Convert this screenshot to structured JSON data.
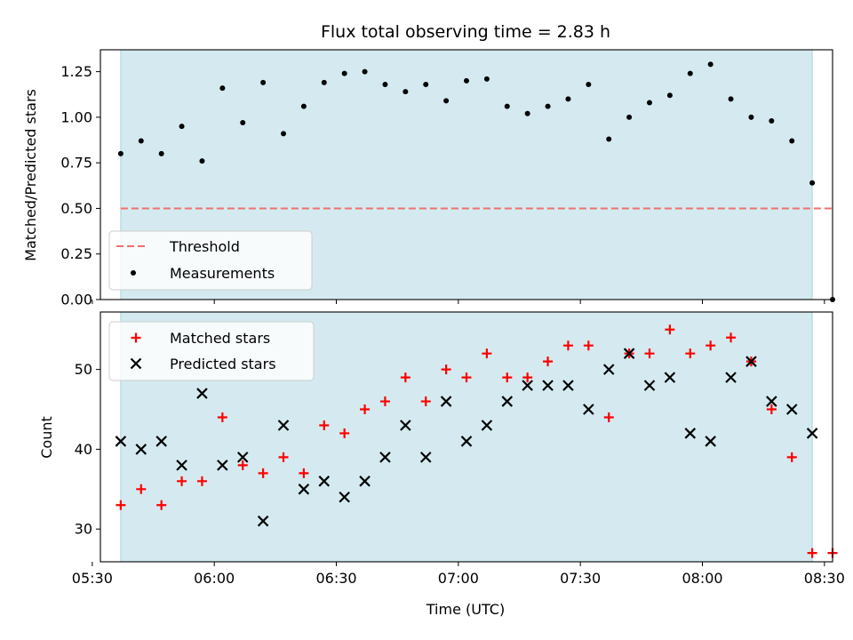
{
  "chart_data": [
    {
      "type": "scatter",
      "title": "Flux total observing time = 2.83 h",
      "xlabel": "",
      "ylabel": "Matched/Predicted stars",
      "ylim": [
        0.0,
        1.37
      ],
      "xlim": [
        "05:32",
        "08:32"
      ],
      "yticks": [
        "0.00",
        "0.25",
        "0.50",
        "0.75",
        "1.00",
        "1.25"
      ],
      "ytick_values": [
        0.0,
        0.25,
        0.5,
        0.75,
        1.0,
        1.25
      ],
      "shaded_span": [
        "05:37",
        "08:27"
      ],
      "threshold": {
        "name": "Threshold",
        "value": 0.5,
        "x_start": "05:37",
        "x_end": "08:32",
        "color": "#f07070"
      },
      "series": [
        {
          "name": "Measurements",
          "color": "#000000",
          "x": [
            "05:37",
            "05:42",
            "05:47",
            "05:52",
            "05:57",
            "06:02",
            "06:07",
            "06:12",
            "06:17",
            "06:22",
            "06:27",
            "06:32",
            "06:37",
            "06:42",
            "06:47",
            "06:52",
            "06:57",
            "07:02",
            "07:07",
            "07:12",
            "07:17",
            "07:22",
            "07:27",
            "07:32",
            "07:37",
            "07:42",
            "07:47",
            "07:52",
            "07:57",
            "08:02",
            "08:07",
            "08:12",
            "08:17",
            "08:22",
            "08:27",
            "08:32"
          ],
          "y": [
            0.8,
            0.87,
            0.8,
            0.95,
            0.76,
            1.16,
            0.97,
            1.19,
            0.91,
            1.06,
            1.19,
            1.24,
            1.25,
            1.18,
            1.14,
            1.18,
            1.09,
            1.2,
            1.21,
            1.06,
            1.02,
            1.06,
            1.1,
            1.18,
            0.88,
            1.0,
            1.08,
            1.12,
            1.24,
            1.29,
            1.1,
            1.0,
            0.98,
            0.87,
            0.64,
            0.0
          ]
        }
      ],
      "legend": {
        "placement": "lower-left",
        "entries": [
          "Threshold",
          "Measurements"
        ]
      }
    },
    {
      "type": "scatter",
      "title": "",
      "xlabel": "Time (UTC)",
      "ylabel": "Count",
      "ylim": [
        25.9,
        57.2
      ],
      "xlim": [
        "05:32",
        "08:32"
      ],
      "xticks": [
        "05:30",
        "06:00",
        "06:30",
        "07:00",
        "07:30",
        "08:00",
        "08:30"
      ],
      "yticks": [
        "30",
        "40",
        "50"
      ],
      "ytick_values": [
        30,
        40,
        50
      ],
      "shaded_span": [
        "05:37",
        "08:27"
      ],
      "series": [
        {
          "name": "Matched stars",
          "color": "#ff0000",
          "marker": "plus",
          "x": [
            "05:37",
            "05:42",
            "05:47",
            "05:52",
            "05:57",
            "06:02",
            "06:07",
            "06:12",
            "06:17",
            "06:22",
            "06:27",
            "06:32",
            "06:37",
            "06:42",
            "06:47",
            "06:52",
            "06:57",
            "07:02",
            "07:07",
            "07:12",
            "07:17",
            "07:22",
            "07:27",
            "07:32",
            "07:37",
            "07:42",
            "07:47",
            "07:52",
            "07:57",
            "08:02",
            "08:07",
            "08:12",
            "08:17",
            "08:22",
            "08:27",
            "08:32"
          ],
          "y": [
            33,
            35,
            33,
            36,
            36,
            44,
            38,
            37,
            39,
            37,
            43,
            42,
            45,
            46,
            49,
            46,
            50,
            49,
            52,
            49,
            49,
            51,
            53,
            53,
            44,
            52,
            52,
            55,
            52,
            53,
            54,
            51,
            45,
            39,
            27,
            27
          ]
        },
        {
          "name": "Predicted stars",
          "color": "#000000",
          "marker": "x",
          "x": [
            "05:37",
            "05:42",
            "05:47",
            "05:52",
            "05:57",
            "06:02",
            "06:07",
            "06:12",
            "06:17",
            "06:22",
            "06:27",
            "06:32",
            "06:37",
            "06:42",
            "06:47",
            "06:52",
            "06:57",
            "07:02",
            "07:07",
            "07:12",
            "07:17",
            "07:22",
            "07:27",
            "07:32",
            "07:37",
            "07:42",
            "07:47",
            "07:52",
            "07:57",
            "08:02",
            "08:07",
            "08:12",
            "08:17",
            "08:22",
            "08:27"
          ],
          "y": [
            41,
            40,
            41,
            38,
            47,
            38,
            39,
            31,
            43,
            35,
            36,
            34,
            36,
            39,
            43,
            39,
            46,
            41,
            43,
            46,
            48,
            48,
            48,
            45,
            50,
            52,
            48,
            49,
            42,
            41,
            49,
            51,
            46,
            45,
            42
          ]
        }
      ],
      "legend": {
        "placement": "upper-left",
        "entries": [
          "Matched stars",
          "Predicted stars"
        ]
      }
    }
  ],
  "colors": {
    "shade": "#d4eaf0",
    "shade_edge": "#a8d3dd",
    "threshold": "#f07070",
    "matched": "#ff0000",
    "predicted": "#000000",
    "measurement": "#000000"
  }
}
